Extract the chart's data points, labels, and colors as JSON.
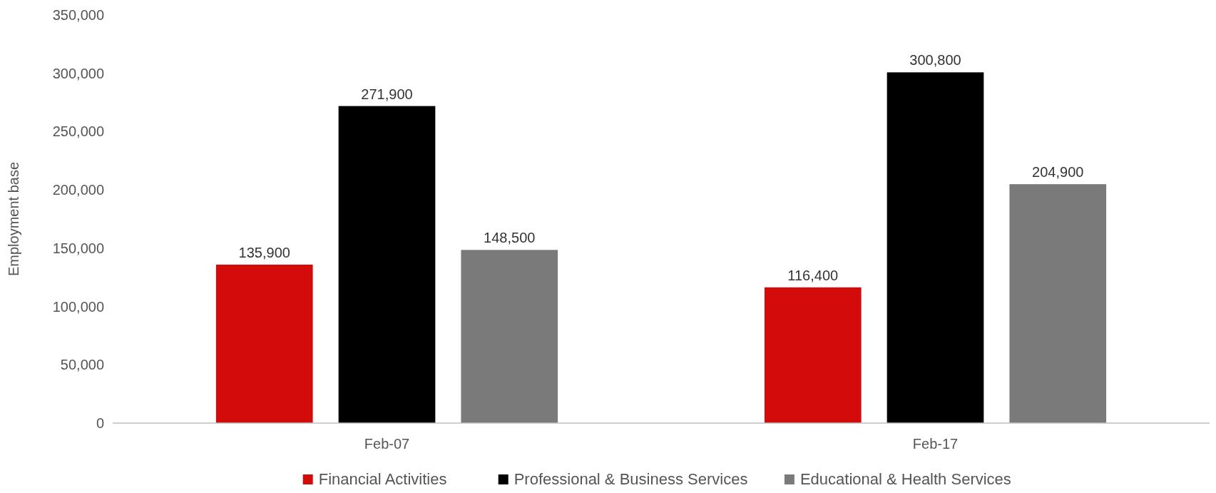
{
  "chart_data": {
    "type": "bar",
    "ylabel": "Employment base",
    "categories": [
      "Feb-07",
      "Feb-17"
    ],
    "series": [
      {
        "name": "Financial Activities",
        "color": "#d40b0b",
        "values": [
          135900,
          116400
        ],
        "value_labels": [
          "135,900",
          "116,400"
        ]
      },
      {
        "name": "Professional & Business Services",
        "color": "#000000",
        "values": [
          271900,
          300800
        ],
        "value_labels": [
          "271,900",
          "300,800"
        ]
      },
      {
        "name": "Educational & Health Services",
        "color": "#7a7a7a",
        "values": [
          148500,
          204900
        ],
        "value_labels": [
          "148,500",
          "204,900"
        ]
      }
    ],
    "ylim": [
      0,
      350000
    ],
    "yticks": [
      {
        "value": 0,
        "label": "0"
      },
      {
        "value": 50000,
        "label": "50,000"
      },
      {
        "value": 100000,
        "label": "100,000"
      },
      {
        "value": 150000,
        "label": "150,000"
      },
      {
        "value": 200000,
        "label": "200,000"
      },
      {
        "value": 250000,
        "label": "250,000"
      },
      {
        "value": 300000,
        "label": "300,000"
      },
      {
        "value": 350000,
        "label": "350,000"
      }
    ],
    "grid": false,
    "legend": "bottom"
  }
}
